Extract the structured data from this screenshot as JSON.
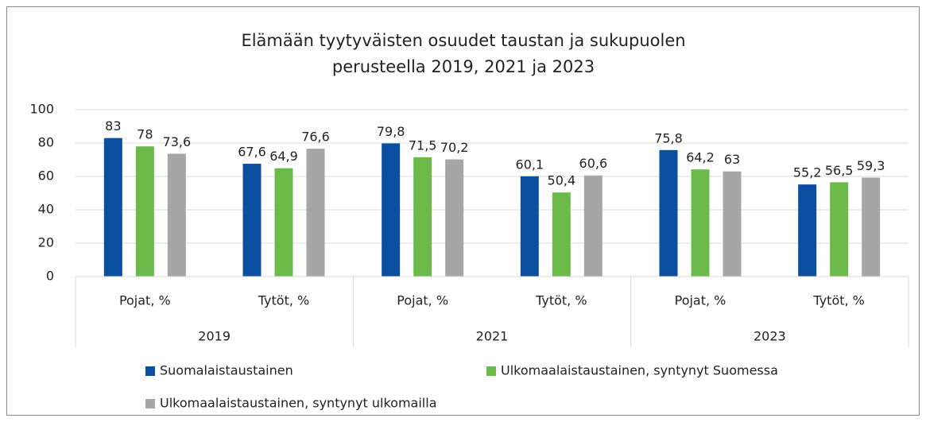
{
  "chart_data": {
    "type": "bar",
    "title": [
      "Elämään tyytyväisten osuudet taustan ja sukupuolen",
      "perusteella 2019, 2021 ja 2023"
    ],
    "categories": [
      "Pojat, %",
      "Tytöt, %",
      "Pojat, %",
      "Tytöt, %",
      "Pojat, %",
      "Tytöt, %"
    ],
    "groups": [
      "2019",
      "2021",
      "2023"
    ],
    "series": [
      {
        "name": "Suomalaistaustainen",
        "color": "#0b4fa1",
        "values": [
          83,
          67.6,
          79.8,
          60.1,
          75.8,
          55.2
        ],
        "value_labels": [
          "83",
          "67,6",
          "79,8",
          "60,1",
          "75,8",
          "55,2"
        ]
      },
      {
        "name": "Ulkomaalaistaustainen, syntynyt Suomessa",
        "color": "#6cbb4a",
        "values": [
          78,
          64.9,
          71.5,
          50.4,
          64.2,
          56.5
        ],
        "value_labels": [
          "78",
          "64,9",
          "71,5",
          "50,4",
          "64,2",
          "56,5"
        ]
      },
      {
        "name": "Ulkomaalaistaustainen, syntynyt ulkomailla",
        "color": "#a6a6a6",
        "values": [
          73.6,
          76.6,
          70.2,
          60.6,
          63,
          59.3
        ],
        "value_labels": [
          "73,6",
          "76,6",
          "70,2",
          "60,6",
          "63",
          "59,3"
        ]
      }
    ],
    "ylim": [
      0,
      100
    ],
    "yticks": [
      0,
      20,
      40,
      60,
      80,
      100
    ],
    "grid": true
  }
}
